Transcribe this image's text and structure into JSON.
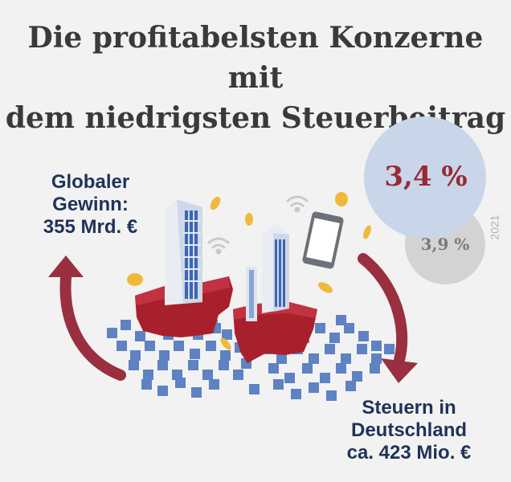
{
  "title": {
    "line1": "Die profitabelsten Konzerne mit",
    "line2": "dem niedrigsten Steuerbeitrag"
  },
  "global_profit": {
    "line1": "Globaler",
    "line2": "Gewinn:",
    "line3": "355 Mrd. €"
  },
  "taxes_germany": {
    "line1": "Steuern in",
    "line2": "Deutschland",
    "line3": "ca. 423 Mio. €"
  },
  "rate_current": "3,4 %",
  "rate_previous": "3,9 %",
  "previous_year": "2021",
  "colors": {
    "title": "#3a3a3a",
    "label_blue": "#1f3358",
    "arrow_red": "#9a2f3f",
    "bubble_blue": "#c9d6ea",
    "bubble_gray": "#d3d3d3",
    "rate_red": "#9a2a35",
    "pixel_blue": "#5e82c2",
    "ground_red": "#a8202c",
    "coin_gold": "#f0b93a"
  },
  "icons": [
    "tower-building-icon",
    "phone-icon",
    "wifi-icon",
    "coin-icon",
    "curved-arrow-icon"
  ]
}
